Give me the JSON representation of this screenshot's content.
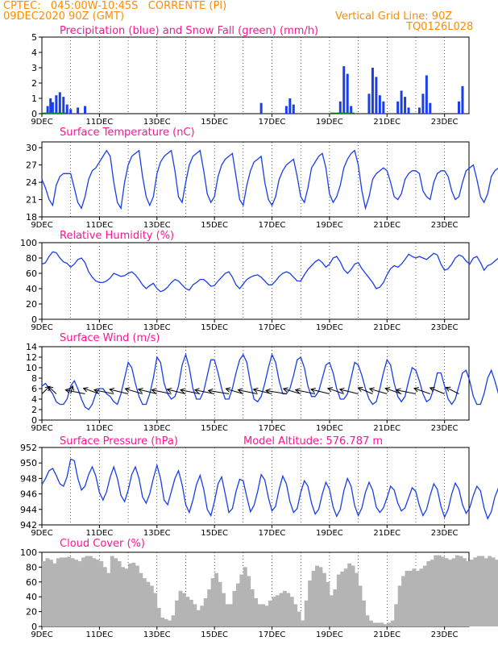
{
  "header": {
    "line1": "CPTEC:   045:00W-10:45S   CORRENTE (PI)",
    "line2": "09DEC2020 90Z (GMT)",
    "grid_note": "Vertical Grid Line: 90Z",
    "code": "TQ0126L028"
  },
  "colors": {
    "header": "#ff8c00",
    "title": "#ff1493",
    "series": "#1a3ee8",
    "snow": "#00a000",
    "cloud": "#b4b4b4",
    "frame": "#000000"
  },
  "x_ticks": [
    {
      "day": 0,
      "label": "9DEC"
    },
    {
      "day": 2,
      "label": "11DEC"
    },
    {
      "day": 4,
      "label": "13DEC"
    },
    {
      "day": 6,
      "label": "15DEC"
    },
    {
      "day": 8,
      "label": "17DEC"
    },
    {
      "day": 10,
      "label": "19DEC"
    },
    {
      "day": 12,
      "label": "21DEC"
    },
    {
      "day": 14,
      "label": "23DEC"
    }
  ],
  "x_range_days": [
    0,
    14.85
  ],
  "chart_data": [
    {
      "type": "bar",
      "title": "Precipitation (blue) and Snow Fall (green) (mm/h)",
      "ylim": [
        0,
        5
      ],
      "yticks": [
        0,
        1,
        2,
        3,
        4,
        5
      ],
      "series": [
        {
          "name": "Precipitation",
          "values": [
            [
              0.2,
              0.5
            ],
            [
              0.3,
              1.0
            ],
            [
              0.375,
              0.75
            ],
            [
              0.5,
              1.2
            ],
            [
              0.625,
              1.4
            ],
            [
              0.75,
              1.1
            ],
            [
              0.875,
              0.6
            ],
            [
              1.0,
              0.3
            ],
            [
              1.25,
              0.4
            ],
            [
              1.5,
              0.5
            ],
            [
              7.625,
              0.7
            ],
            [
              8.5,
              0.5
            ],
            [
              8.625,
              1.0
            ],
            [
              8.75,
              0.6
            ],
            [
              10.375,
              0.8
            ],
            [
              10.5,
              3.1
            ],
            [
              10.625,
              2.6
            ],
            [
              10.75,
              0.5
            ],
            [
              11.375,
              1.3
            ],
            [
              11.5,
              3.0
            ],
            [
              11.625,
              2.4
            ],
            [
              11.75,
              1.2
            ],
            [
              11.875,
              0.8
            ],
            [
              12.375,
              0.8
            ],
            [
              12.5,
              1.5
            ],
            [
              12.625,
              1.1
            ],
            [
              12.75,
              0.4
            ],
            [
              13.125,
              0.4
            ],
            [
              13.25,
              1.3
            ],
            [
              13.375,
              2.5
            ],
            [
              13.5,
              0.7
            ],
            [
              14.5,
              0.8
            ],
            [
              14.625,
              1.8
            ]
          ]
        },
        {
          "name": "Snow Fall",
          "values": []
        }
      ]
    },
    {
      "type": "line",
      "title": "Surface Temperature (nC)",
      "ylim": [
        18,
        31
      ],
      "yticks": [
        18,
        21,
        24,
        27,
        30
      ],
      "x_step_days": 0.125,
      "values": [
        24.5,
        23.0,
        21.0,
        20.0,
        23.5,
        25.0,
        25.5,
        25.5,
        25.5,
        23.0,
        20.5,
        19.5,
        21.5,
        24.5,
        26.0,
        26.5,
        27.5,
        28.5,
        29.5,
        28.5,
        24.0,
        20.5,
        19.5,
        24.0,
        27.0,
        28.5,
        29.0,
        29.5,
        25.0,
        21.5,
        20.0,
        21.5,
        25.5,
        27.5,
        28.5,
        29.0,
        29.5,
        26.0,
        21.5,
        20.5,
        24.0,
        27.0,
        28.5,
        29.0,
        29.5,
        26.0,
        22.0,
        20.5,
        21.5,
        25.0,
        27.0,
        28.0,
        28.5,
        29.0,
        25.0,
        21.0,
        20.0,
        23.5,
        26.0,
        27.5,
        28.0,
        28.5,
        24.0,
        21.0,
        20.0,
        21.5,
        24.5,
        26.0,
        27.0,
        27.5,
        28.0,
        25.0,
        21.5,
        20.5,
        23.0,
        26.5,
        27.5,
        28.5,
        29.0,
        26.5,
        22.0,
        20.5,
        21.5,
        23.5,
        26.5,
        28.0,
        29.0,
        29.5,
        27.0,
        22.5,
        19.5,
        21.5,
        24.5,
        25.5,
        26.0,
        26.5,
        26.0,
        24.0,
        21.5,
        21.0,
        22.0,
        24.5,
        25.5,
        26.0,
        26.0,
        25.5,
        22.5,
        21.5,
        21.0,
        24.0,
        25.5,
        26.0,
        26.0,
        25.0,
        22.5,
        21.0,
        21.5,
        24.0,
        26.0,
        26.5,
        27.0,
        24.5,
        21.5,
        20.5,
        22.0,
        25.0,
        26.0,
        26.5,
        26.0,
        24.0,
        21.5,
        21.0,
        23.0,
        26.5,
        28.0,
        27.5,
        26.0
      ]
    },
    {
      "type": "line",
      "title": "Relative Humidity (%)",
      "ylim": [
        0,
        100
      ],
      "yticks": [
        0,
        20,
        40,
        60,
        80,
        100
      ],
      "x_step_days": 0.125,
      "values": [
        72,
        74,
        82,
        88,
        87,
        80,
        75,
        73,
        68,
        72,
        78,
        80,
        74,
        62,
        55,
        50,
        48,
        48,
        50,
        54,
        60,
        58,
        56,
        57,
        60,
        62,
        58,
        52,
        45,
        40,
        44,
        47,
        40,
        36,
        38,
        42,
        48,
        52,
        50,
        45,
        40,
        38,
        45,
        48,
        52,
        52,
        48,
        43,
        44,
        50,
        55,
        60,
        62,
        55,
        45,
        40,
        46,
        52,
        55,
        57,
        58,
        55,
        50,
        45,
        45,
        50,
        56,
        60,
        62,
        60,
        55,
        50,
        50,
        58,
        65,
        70,
        75,
        78,
        74,
        68,
        72,
        80,
        82,
        75,
        65,
        60,
        65,
        72,
        74,
        66,
        60,
        54,
        48,
        40,
        42,
        48,
        58,
        66,
        70,
        68,
        72,
        78,
        85,
        82,
        80,
        82,
        80,
        78,
        82,
        86,
        84,
        72,
        64,
        66,
        72,
        80,
        84,
        82,
        76,
        72,
        80,
        82,
        74,
        64,
        70,
        72,
        76,
        80,
        78,
        75,
        76,
        74,
        80,
        82,
        74,
        62,
        52,
        50,
        60,
        60
      ]
    },
    {
      "type": "line",
      "title": "Surface Wind (m/s)",
      "ylim": [
        0,
        14
      ],
      "yticks": [
        0,
        2,
        4,
        6,
        8,
        10,
        12,
        14
      ],
      "x_step_days": 0.125,
      "values": [
        6.5,
        7.0,
        6.0,
        5.0,
        3.5,
        3.0,
        3.0,
        4.0,
        6.5,
        7.5,
        6.0,
        4.0,
        2.5,
        2.0,
        3.0,
        5.0,
        6.0,
        6.0,
        5.0,
        4.5,
        3.5,
        3.0,
        5.0,
        8.0,
        11.0,
        10.0,
        7.0,
        4.5,
        3.0,
        3.0,
        5.0,
        8.0,
        12.0,
        11.0,
        7.0,
        5.0,
        4.0,
        4.5,
        6.5,
        10.5,
        12.5,
        10.0,
        6.0,
        4.0,
        4.0,
        5.5,
        8.5,
        11.5,
        11.5,
        9.0,
        6.0,
        4.0,
        4.0,
        6.0,
        9.0,
        11.5,
        12.5,
        11.0,
        7.0,
        4.0,
        3.5,
        4.5,
        7.0,
        10.0,
        12.5,
        11.0,
        7.5,
        5.0,
        5.0,
        6.0,
        8.5,
        11.5,
        12.0,
        10.0,
        6.5,
        4.5,
        4.5,
        5.5,
        8.0,
        10.5,
        11.0,
        9.0,
        6.0,
        4.0,
        4.0,
        5.0,
        8.0,
        11.0,
        10.5,
        8.5,
        6.0,
        4.0,
        3.0,
        3.5,
        6.0,
        9.0,
        11.5,
        10.5,
        7.0,
        4.5,
        3.5,
        4.5,
        7.5,
        10.0,
        9.5,
        7.5,
        5.0,
        3.5,
        4.0,
        6.0,
        9.0,
        9.0,
        6.5,
        4.0,
        3.0,
        4.0,
        6.5,
        9.0,
        9.5,
        7.5,
        4.5,
        3.0,
        3.0,
        5.0,
        8.0,
        9.5,
        7.5,
        5.0,
        3.0,
        2.5,
        3.5,
        7.0,
        9.0,
        7.0,
        4.0,
        3.5,
        5.0,
        7.5,
        8.0,
        6.0
      ]
    },
    {
      "type": "line",
      "title": "Surface Pressure (hPa)",
      "annotation": "Model Altitude: 576.787 m",
      "ylim": [
        942,
        952
      ],
      "yticks": [
        942,
        944,
        946,
        948,
        950,
        952
      ],
      "x_step_days": 0.125,
      "values": [
        947.2,
        948.0,
        949.0,
        949.3,
        948.4,
        947.3,
        947.0,
        948.2,
        950.5,
        950.3,
        948.0,
        946.5,
        947.0,
        948.5,
        949.5,
        948.3,
        946.2,
        945.2,
        946.3,
        948.2,
        949.5,
        948.0,
        945.8,
        945.0,
        946.5,
        948.5,
        949.5,
        948.0,
        945.6,
        944.8,
        946.0,
        948.0,
        949.7,
        948.0,
        945.2,
        944.6,
        946.3,
        948.0,
        949.0,
        947.2,
        944.6,
        943.6,
        945.2,
        947.2,
        948.4,
        946.6,
        944.0,
        943.2,
        945.0,
        947.3,
        948.2,
        946.0,
        943.6,
        944.1,
        946.3,
        947.9,
        947.7,
        945.6,
        943.7,
        944.5,
        946.3,
        948.5,
        947.8,
        945.5,
        943.8,
        944.4,
        946.6,
        948.3,
        947.3,
        945.0,
        943.6,
        944.1,
        946.2,
        947.7,
        947.0,
        944.8,
        943.4,
        944.0,
        946.0,
        947.5,
        946.6,
        944.3,
        943.1,
        944.0,
        946.4,
        948.0,
        947.0,
        944.5,
        943.2,
        944.2,
        946.2,
        947.5,
        946.5,
        944.3,
        943.6,
        944.2,
        945.5,
        947.0,
        946.5,
        944.8,
        943.8,
        944.2,
        945.5,
        946.8,
        946.3,
        944.5,
        943.2,
        944.0,
        945.8,
        947.3,
        946.6,
        944.4,
        943.0,
        944.0,
        946.0,
        947.4,
        946.6,
        944.6,
        943.5,
        944.2,
        945.8,
        947.0,
        946.4,
        944.2,
        942.8,
        943.7,
        945.6,
        946.8,
        946.2,
        944.0,
        942.8,
        943.8,
        945.6,
        946.7,
        946.0,
        944.0,
        942.2,
        943.2,
        944.4
      ]
    },
    {
      "type": "bar",
      "title": "Cloud Cover (%)",
      "ylim": [
        0,
        100
      ],
      "yticks": [
        0,
        20,
        40,
        60,
        80,
        100
      ],
      "x_step_days": 0.125,
      "values": [
        88,
        92,
        90,
        85,
        92,
        93,
        93,
        94,
        92,
        90,
        88,
        93,
        95,
        95,
        92,
        90,
        88,
        80,
        72,
        95,
        92,
        88,
        80,
        78,
        85,
        86,
        82,
        72,
        65,
        60,
        55,
        45,
        25,
        12,
        10,
        8,
        15,
        35,
        48,
        45,
        40,
        36,
        30,
        22,
        28,
        38,
        50,
        65,
        72,
        60,
        45,
        30,
        30,
        48,
        58,
        70,
        80,
        68,
        50,
        38,
        30,
        30,
        28,
        35,
        40,
        42,
        45,
        48,
        45,
        40,
        30,
        20,
        8,
        35,
        62,
        75,
        82,
        80,
        72,
        60,
        42,
        50,
        70,
        74,
        78,
        85,
        82,
        72,
        55,
        35,
        15,
        8,
        5,
        5,
        5,
        3,
        5,
        8,
        30,
        55,
        68,
        75,
        75,
        78,
        75,
        78,
        82,
        88,
        90,
        96,
        96,
        94,
        92,
        90,
        92,
        96,
        95,
        92,
        88,
        90,
        93,
        95,
        95,
        92,
        95,
        93,
        90,
        92,
        94,
        94,
        94,
        95,
        94,
        93,
        92,
        94,
        95,
        96,
        95,
        96
      ]
    }
  ],
  "wind_arrows": [
    {
      "day": 0.0,
      "dir_deg": 340
    },
    {
      "day": 0.5,
      "dir_deg": 20
    },
    {
      "day": 1.0,
      "dir_deg": 355
    },
    {
      "day": 1.5,
      "dir_deg": 60
    },
    {
      "day": 2.0,
      "dir_deg": 45
    },
    {
      "day": 2.5,
      "dir_deg": 60
    },
    {
      "day": 3.0,
      "dir_deg": 55
    },
    {
      "day": 3.5,
      "dir_deg": 50
    },
    {
      "day": 4.0,
      "dir_deg": 55
    },
    {
      "day": 4.5,
      "dir_deg": 60
    },
    {
      "day": 5.0,
      "dir_deg": 55
    },
    {
      "day": 5.5,
      "dir_deg": 60
    },
    {
      "day": 6.0,
      "dir_deg": 60
    },
    {
      "day": 6.5,
      "dir_deg": 65
    },
    {
      "day": 7.0,
      "dir_deg": 50
    },
    {
      "day": 7.5,
      "dir_deg": 60
    },
    {
      "day": 8.0,
      "dir_deg": 55
    },
    {
      "day": 8.5,
      "dir_deg": 65
    },
    {
      "day": 9.0,
      "dir_deg": 50
    },
    {
      "day": 9.5,
      "dir_deg": 60
    },
    {
      "day": 10.0,
      "dir_deg": 55
    },
    {
      "day": 10.5,
      "dir_deg": 45
    },
    {
      "day": 11.0,
      "dir_deg": 55
    },
    {
      "day": 11.5,
      "dir_deg": 40
    },
    {
      "day": 12.0,
      "dir_deg": 50
    },
    {
      "day": 12.5,
      "dir_deg": 45
    },
    {
      "day": 13.0,
      "dir_deg": 60
    },
    {
      "day": 13.5,
      "dir_deg": 45
    },
    {
      "day": 14.0,
      "dir_deg": 40
    },
    {
      "day": 14.5,
      "dir_deg": 35
    }
  ]
}
